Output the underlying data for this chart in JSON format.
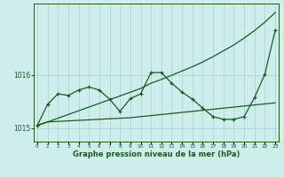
{
  "xlabel": "Graphe pression niveau de la mer (hPa)",
  "bg_color": "#cdeeed",
  "line_color": "#1a5c1a",
  "grid_color": "#a8d8d8",
  "x_values": [
    0,
    1,
    2,
    3,
    4,
    5,
    6,
    7,
    8,
    9,
    10,
    11,
    12,
    13,
    14,
    15,
    16,
    17,
    18,
    19,
    20,
    21,
    22,
    23
  ],
  "y_main": [
    1015.05,
    1015.45,
    1015.65,
    1015.62,
    1015.72,
    1015.78,
    1015.72,
    1015.55,
    1015.32,
    1015.56,
    1015.65,
    1016.05,
    1016.05,
    1015.85,
    1015.68,
    1015.55,
    1015.38,
    1015.22,
    1015.17,
    1015.17,
    1015.22,
    1015.58,
    1016.02,
    1016.85
  ],
  "y_flat": [
    1015.06,
    1015.12,
    1015.13,
    1015.14,
    1015.15,
    1015.16,
    1015.17,
    1015.18,
    1015.19,
    1015.2,
    1015.22,
    1015.24,
    1015.26,
    1015.28,
    1015.3,
    1015.32,
    1015.34,
    1015.36,
    1015.38,
    1015.4,
    1015.42,
    1015.44,
    1015.46,
    1015.48
  ],
  "y_trend": [
    1015.05,
    1015.12,
    1015.19,
    1015.26,
    1015.33,
    1015.4,
    1015.47,
    1015.54,
    1015.61,
    1015.68,
    1015.75,
    1015.85,
    1015.92,
    1016.0,
    1016.08,
    1016.16,
    1016.25,
    1016.35,
    1016.46,
    1016.57,
    1016.7,
    1016.84,
    1017.0,
    1017.18
  ],
  "ylim_min": 1014.75,
  "ylim_max": 1017.35,
  "yticks": [
    1015.0,
    1016.0
  ],
  "marker": "+",
  "marker_size": 3.5,
  "linewidth": 0.9
}
